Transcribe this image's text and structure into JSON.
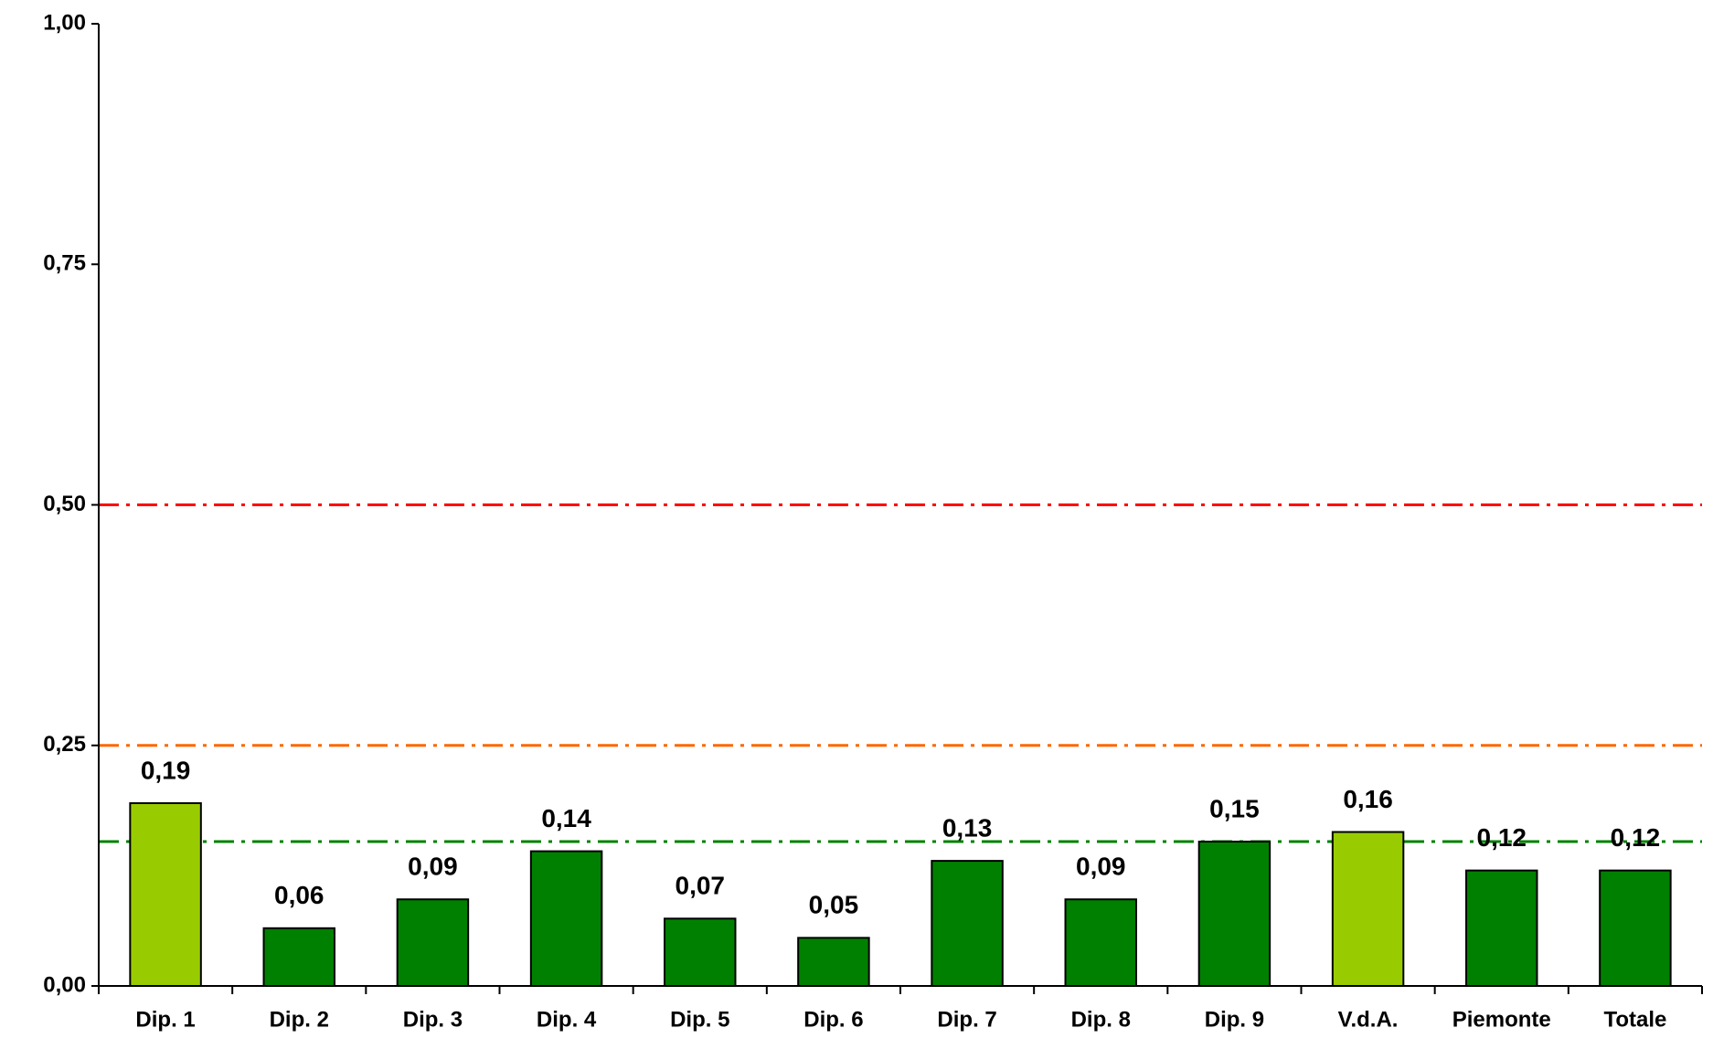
{
  "chart_data": {
    "type": "bar",
    "categories": [
      "Dip. 1",
      "Dip. 2",
      "Dip. 3",
      "Dip. 4",
      "Dip. 5",
      "Dip. 6",
      "Dip. 7",
      "Dip. 8",
      "Dip. 9",
      "V.d.A.",
      "Piemonte",
      "Totale"
    ],
    "values": [
      0.19,
      0.06,
      0.09,
      0.14,
      0.07,
      0.05,
      0.13,
      0.09,
      0.15,
      0.16,
      0.12,
      0.12
    ],
    "value_labels": [
      "0,19",
      "0,06",
      "0,09",
      "0,14",
      "0,07",
      "0,05",
      "0,13",
      "0,09",
      "0,15",
      "0,16",
      "0,12",
      "0,12"
    ],
    "colors": [
      "#99cc00",
      "#008000",
      "#008000",
      "#008000",
      "#008000",
      "#008000",
      "#008000",
      "#008000",
      "#008000",
      "#99cc00",
      "#008000",
      "#008000"
    ],
    "ylim": [
      0,
      1
    ],
    "yticks": [
      {
        "value": 0,
        "label": "0,00"
      },
      {
        "value": 0.25,
        "label": "0,25"
      },
      {
        "value": 0.5,
        "label": "0,50"
      },
      {
        "value": 0.75,
        "label": "0,75"
      },
      {
        "value": 1,
        "label": "1,00"
      }
    ],
    "reference_lines": [
      {
        "value": 0.5,
        "color": "#ff0000"
      },
      {
        "value": 0.25,
        "color": "#ff6600"
      },
      {
        "value": 0.15,
        "color": "#008000"
      }
    ],
    "grid": false
  }
}
